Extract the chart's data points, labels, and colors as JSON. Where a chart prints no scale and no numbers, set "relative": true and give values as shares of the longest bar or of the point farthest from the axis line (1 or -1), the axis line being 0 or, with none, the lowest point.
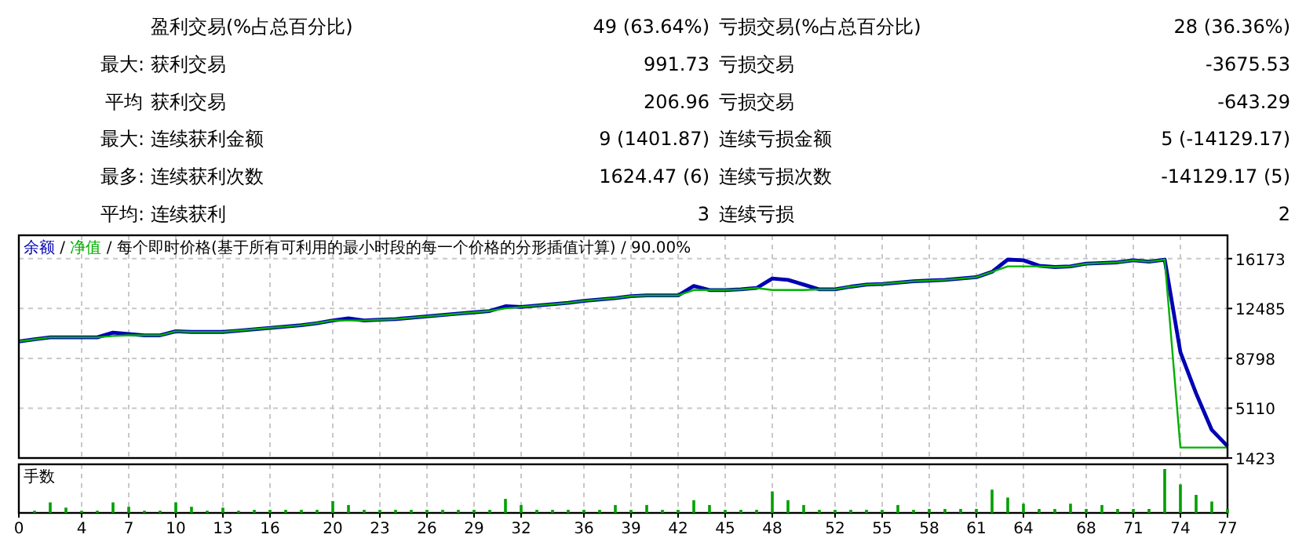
{
  "chart_data": [
    {
      "type": "other",
      "categories": [
        null,
        "最大",
        "平均",
        "最大",
        "最多",
        "平均"
      ],
      "annotations": [
        null,
        "盈利交易(%占总百分比)",
        "49 (63.64%)",
        "亏损交易(%占总百分比)",
        "28 (36.36%)",
        ":",
        "获利交易",
        "991.73",
        "亏损交易",
        "-3675.53",
        null,
        "获利交易",
        "206.96",
        "亏损交易",
        "-643.29",
        ":",
        "连续获利金额",
        "9 (1401.87)",
        "连续亏损金额",
        "5 (-14129.17)",
        ":",
        "连续获利次数",
        "1624.47 (6)",
        "连续亏损次数",
        "-14129.17 (5)",
        ":",
        "连续获利",
        "3",
        "连续亏损",
        "2"
      ]
    },
    {
      "type": "line",
      "title": "/ 每个即时价格(基于所有可利用的最小时段的每一个价格的分形插值计算) / 90.00%",
      "annotations": [
        "/"
      ],
      "legend": "top left",
      "grid": true,
      "tick_labels": "y",
      "x": [
        0,
        1,
        2,
        3,
        4,
        5,
        6,
        7,
        8,
        9,
        10,
        11,
        12,
        13,
        14,
        15,
        16,
        17,
        18,
        19,
        20,
        21,
        22,
        23,
        24,
        25,
        26,
        27,
        28,
        29,
        30,
        31,
        32,
        33,
        34,
        35,
        36,
        37,
        38,
        39,
        40,
        41,
        42,
        43,
        44,
        45,
        46,
        47,
        48,
        49,
        50,
        51,
        52,
        53,
        54,
        55,
        56,
        57,
        58,
        59,
        60,
        61,
        62,
        63,
        64,
        65,
        66,
        67,
        68,
        69,
        70,
        71,
        72,
        73,
        74,
        75,
        76,
        77
      ],
      "xlim": [
        0,
        77
      ],
      "xticks": [
        0,
        4,
        7,
        10,
        13,
        16,
        20,
        23,
        26,
        29,
        32,
        36,
        39,
        42,
        45,
        48,
        52,
        55,
        58,
        61,
        64,
        68,
        71,
        74,
        77
      ],
      "ylim": [
        1423,
        17900
      ],
      "yticks": [
        16173,
        12485,
        8798,
        5110,
        1423
      ],
      "series": [
        {
          "name": "余额",
          "color": "#0000b4",
          "values": [
            10050,
            10200,
            10350,
            10350,
            10350,
            10350,
            10700,
            10600,
            10500,
            10500,
            10800,
            10750,
            10750,
            10750,
            10850,
            10950,
            11050,
            11150,
            11250,
            11400,
            11600,
            11750,
            11600,
            11650,
            11700,
            11800,
            11900,
            12000,
            12100,
            12200,
            12300,
            12650,
            12600,
            12700,
            12800,
            12900,
            13050,
            13150,
            13250,
            13400,
            13450,
            13450,
            13450,
            14150,
            13850,
            13850,
            13900,
            14000,
            14700,
            14600,
            14250,
            13900,
            13900,
            14100,
            14250,
            14300,
            14400,
            14500,
            14550,
            14600,
            14700,
            14800,
            15200,
            16100,
            16050,
            15650,
            15550,
            15600,
            15800,
            15850,
            15900,
            16050,
            15950,
            16100,
            9250,
            6200,
            3500,
            2300
          ]
        },
        {
          "name": "净值",
          "color": "#00b000",
          "values": [
            10050,
            10200,
            10350,
            10350,
            10350,
            10350,
            10450,
            10500,
            10500,
            10500,
            10800,
            10750,
            10750,
            10750,
            10850,
            10950,
            11050,
            11150,
            11250,
            11400,
            11600,
            11600,
            11600,
            11650,
            11700,
            11800,
            11900,
            12000,
            12100,
            12200,
            12300,
            12500,
            12600,
            12700,
            12800,
            12900,
            13050,
            13150,
            13250,
            13400,
            13450,
            13450,
            13450,
            13850,
            13850,
            13850,
            13900,
            14000,
            13850,
            13850,
            13850,
            13900,
            13900,
            14100,
            14250,
            14300,
            14400,
            14500,
            14550,
            14600,
            14700,
            14800,
            15200,
            15600,
            15600,
            15600,
            15550,
            15600,
            15800,
            15850,
            15900,
            16050,
            15950,
            16100,
            2200,
            2200,
            2200,
            2200
          ]
        }
      ]
    },
    {
      "type": "bar",
      "title": "手数",
      "relative": true,
      "grid": "x",
      "tick_labels": "x",
      "color": "#00a000",
      "x": [
        1,
        2,
        3,
        4,
        5,
        6,
        7,
        8,
        9,
        10,
        11,
        12,
        13,
        14,
        15,
        16,
        17,
        18,
        19,
        20,
        21,
        22,
        23,
        24,
        25,
        26,
        27,
        28,
        29,
        30,
        31,
        32,
        33,
        34,
        35,
        36,
        37,
        38,
        39,
        40,
        41,
        42,
        43,
        44,
        45,
        46,
        47,
        48,
        49,
        50,
        51,
        52,
        53,
        54,
        55,
        56,
        57,
        58,
        59,
        60,
        61,
        62,
        63,
        64,
        65,
        66,
        67,
        68,
        69,
        70,
        71,
        72,
        73,
        74,
        75,
        76,
        77
      ],
      "xlim": [
        0,
        77
      ],
      "xticks": [
        0,
        4,
        7,
        10,
        13,
        16,
        20,
        23,
        26,
        29,
        32,
        36,
        39,
        42,
        45,
        48,
        52,
        55,
        58,
        61,
        64,
        68,
        71,
        74,
        77
      ],
      "values": [
        0.05,
        0.24,
        0.12,
        0.05,
        0.05,
        0.24,
        0.14,
        0.05,
        0.05,
        0.24,
        0.14,
        0.05,
        0.12,
        0.05,
        0.07,
        0.07,
        0.07,
        0.07,
        0.07,
        0.27,
        0.18,
        0.07,
        0.07,
        0.07,
        0.07,
        0.07,
        0.07,
        0.07,
        0.07,
        0.07,
        0.32,
        0.18,
        0.07,
        0.07,
        0.07,
        0.07,
        0.07,
        0.18,
        0.07,
        0.18,
        0.07,
        0.07,
        0.29,
        0.18,
        0.07,
        0.07,
        0.07,
        0.49,
        0.29,
        0.18,
        0.07,
        0.07,
        0.07,
        0.07,
        0.07,
        0.18,
        0.07,
        0.09,
        0.09,
        0.09,
        0.09,
        0.53,
        0.35,
        0.21,
        0.09,
        0.09,
        0.21,
        0.09,
        0.18,
        0.09,
        0.09,
        0.09,
        1,
        0.65,
        0.41,
        0.26,
        0.09
      ]
    }
  ]
}
